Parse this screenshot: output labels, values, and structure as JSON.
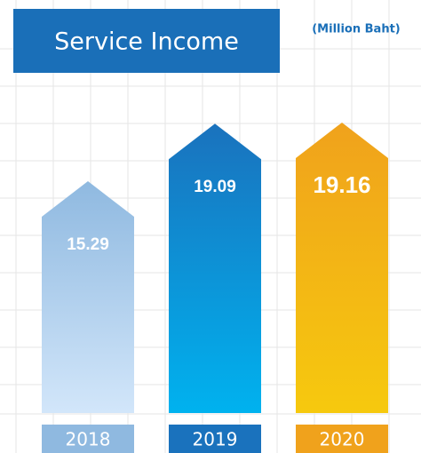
{
  "chart_data": {
    "type": "bar",
    "title": "Service Income",
    "subtitle": "(Million Baht)",
    "categories": [
      "2018",
      "2019",
      "2020"
    ],
    "values": [
      15.29,
      19.09,
      19.16
    ],
    "colors": [
      "#8fb9e0",
      "#1a72bd",
      "#f0a21c"
    ]
  }
}
